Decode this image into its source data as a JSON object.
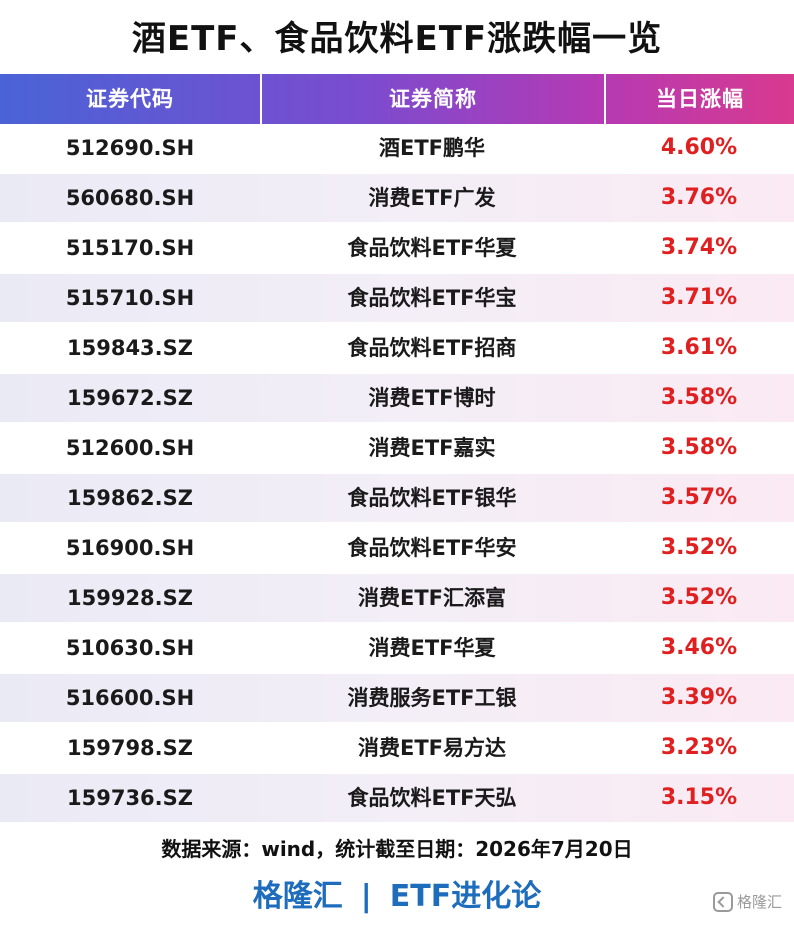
{
  "title": "酒ETF、食品饮料ETF涨跌幅一览",
  "table": {
    "headers": {
      "code": "证券代码",
      "name": "证券简称",
      "change": "当日涨幅"
    },
    "rows": [
      {
        "code": "512690.SH",
        "name": "酒ETF鹏华",
        "change": "4.60%"
      },
      {
        "code": "560680.SH",
        "name": "消费ETF广发",
        "change": "3.76%"
      },
      {
        "code": "515170.SH",
        "name": "食品饮料ETF华夏",
        "change": "3.74%"
      },
      {
        "code": "515710.SH",
        "name": "食品饮料ETF华宝",
        "change": "3.71%"
      },
      {
        "code": "159843.SZ",
        "name": "食品饮料ETF招商",
        "change": "3.61%"
      },
      {
        "code": "159672.SZ",
        "name": "消费ETF博时",
        "change": "3.58%"
      },
      {
        "code": "512600.SH",
        "name": "消费ETF嘉实",
        "change": "3.58%"
      },
      {
        "code": "159862.SZ",
        "name": "食品饮料ETF银华",
        "change": "3.57%"
      },
      {
        "code": "516900.SH",
        "name": "食品饮料ETF华安",
        "change": "3.52%"
      },
      {
        "code": "159928.SZ",
        "name": "消费ETF汇添富",
        "change": "3.52%"
      },
      {
        "code": "510630.SH",
        "name": "消费ETF华夏",
        "change": "3.46%"
      },
      {
        "code": "516600.SH",
        "name": "消费服务ETF工银",
        "change": "3.39%"
      },
      {
        "code": "159798.SZ",
        "name": "消费ETF易方达",
        "change": "3.23%"
      },
      {
        "code": "159736.SZ",
        "name": "食品饮料ETF天弘",
        "change": "3.15%"
      }
    ]
  },
  "source_note": "数据来源：wind，统计截至日期：2026年7月20日",
  "brand": {
    "left": "格隆汇",
    "divider": "|",
    "right": "ETF进化论"
  },
  "watermark": {
    "text": "格隆汇",
    "icon": "gelonghui-logo-icon"
  },
  "colors": {
    "header_gradient_start": "#4a63d6",
    "header_gradient_end": "#d83a8e",
    "change_red": "#e02020",
    "brand_blue": "#1e6dbd"
  }
}
